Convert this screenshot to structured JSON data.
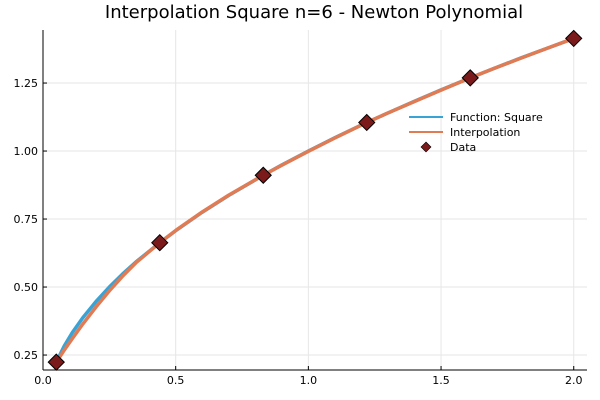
{
  "chart_data": {
    "type": "line",
    "title": "Interpolation Square n=6 - Newton Polynomial",
    "xlabel": "",
    "ylabel": "",
    "xlim": [
      0.0,
      2.05
    ],
    "ylim": [
      0.195,
      1.445
    ],
    "x_ticks": [
      0.0,
      0.5,
      1.0,
      1.5,
      2.0
    ],
    "x_tick_labels": [
      "0.0",
      "0.5",
      "1.0",
      "1.5",
      "2.0"
    ],
    "y_ticks": [
      0.25,
      0.5,
      0.75,
      1.0,
      1.25
    ],
    "y_tick_labels": [
      "0.25",
      "0.50",
      "0.75",
      "1.00",
      "1.25"
    ],
    "grid": true,
    "legend_position": "right",
    "series": [
      {
        "name": "Function: Square",
        "kind": "line",
        "color": "#3aa3d5",
        "x": [
          0.05,
          0.08,
          0.11,
          0.15,
          0.2,
          0.25,
          0.3,
          0.35,
          0.44,
          0.5,
          0.6,
          0.7,
          0.83,
          0.9,
          1.0,
          1.1,
          1.22,
          1.3,
          1.4,
          1.5,
          1.61,
          1.7,
          1.8,
          1.9,
          2.0
        ],
        "y": [
          0.224,
          0.283,
          0.332,
          0.387,
          0.447,
          0.5,
          0.548,
          0.592,
          0.663,
          0.707,
          0.775,
          0.837,
          0.911,
          0.949,
          1.0,
          1.049,
          1.105,
          1.14,
          1.183,
          1.225,
          1.269,
          1.304,
          1.342,
          1.378,
          1.414
        ]
      },
      {
        "name": "Interpolation",
        "kind": "line",
        "color": "#e07b54",
        "x": [
          0.05,
          0.08,
          0.11,
          0.15,
          0.2,
          0.25,
          0.3,
          0.35,
          0.44,
          0.5,
          0.6,
          0.7,
          0.83,
          0.9,
          1.0,
          1.1,
          1.22,
          1.3,
          1.4,
          1.5,
          1.61,
          1.7,
          1.8,
          1.9,
          2.0
        ],
        "y": [
          0.224,
          0.268,
          0.31,
          0.364,
          0.427,
          0.486,
          0.54,
          0.589,
          0.663,
          0.708,
          0.776,
          0.838,
          0.911,
          0.948,
          0.999,
          1.048,
          1.105,
          1.14,
          1.182,
          1.224,
          1.269,
          1.304,
          1.341,
          1.378,
          1.414
        ]
      },
      {
        "name": "Data",
        "kind": "scatter",
        "color": "#7b1a1a",
        "marker": "diamond",
        "x": [
          0.05,
          0.44,
          0.83,
          1.22,
          1.61,
          2.0
        ],
        "y": [
          0.224,
          0.663,
          0.911,
          1.105,
          1.269,
          1.414
        ]
      }
    ]
  }
}
